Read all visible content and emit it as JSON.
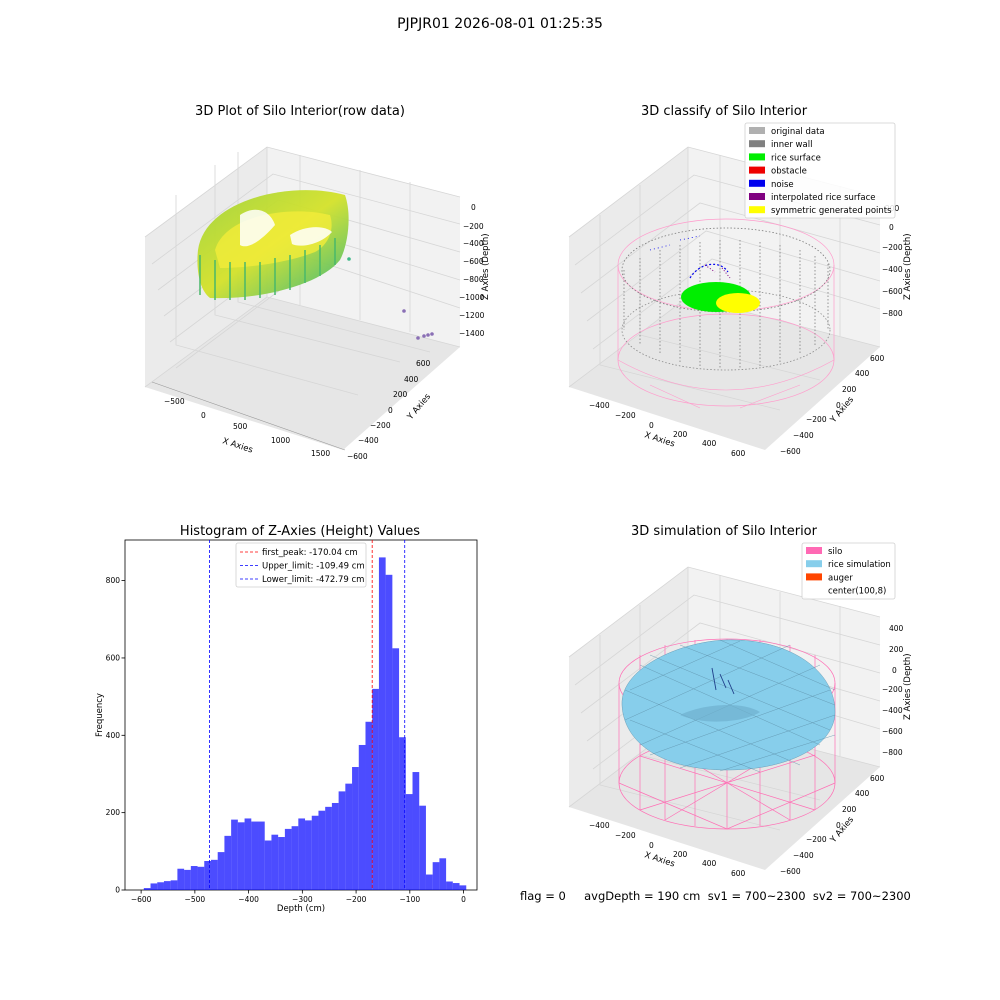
{
  "suptitle": "PJPJR01 2026-08-01 01:25:35",
  "status_text": "flag = 0     avgDepth = 190 cm  sv1 = 700~2300  sv2 = 700~2300",
  "panels": {
    "raw": {
      "title": "3D Plot of Silo Interior(row data)",
      "xlabel": "X Axies",
      "ylabel": "Y Axies",
      "zlabel": "Z Axies (Depth)",
      "xticks": [
        "−500",
        "0",
        "500",
        "1000",
        "1500"
      ],
      "yticks": [
        "600",
        "400",
        "200",
        "0",
        "−200",
        "−400",
        "−600"
      ],
      "zticks": [
        "0",
        "−200",
        "−400",
        "−600",
        "−800",
        "−1000",
        "−1200",
        "−1400"
      ]
    },
    "classify": {
      "title": "3D classify of Silo Interior",
      "xlabel": "X Axies",
      "ylabel": "Y Axies",
      "zlabel": "Z Axies (Depth)",
      "xticks": [
        "−400",
        "−200",
        "0",
        "200",
        "400",
        "600"
      ],
      "yticks": [
        "600",
        "400",
        "200",
        "0",
        "−200",
        "−400",
        "−600"
      ],
      "zticks": [
        "200",
        "0",
        "−200",
        "−400",
        "−600",
        "−800"
      ],
      "legend": [
        {
          "label": "original data",
          "color": "#b0b0b0"
        },
        {
          "label": "inner wall",
          "color": "#808080"
        },
        {
          "label": "rice surface",
          "color": "#00ee00"
        },
        {
          "label": "obstacle",
          "color": "#ee0000"
        },
        {
          "label": "noise",
          "color": "#0000ee"
        },
        {
          "label": "interpolated rice surface",
          "color": "#800080"
        },
        {
          "label": "symmetric generated points",
          "color": "#ffff00"
        }
      ]
    },
    "simulation": {
      "title": "3D simulation of Silo Interior",
      "xlabel": "X Axies",
      "ylabel": "Y Axies",
      "zlabel": "Z Axies (Depth)",
      "xticks": [
        "−400",
        "−200",
        "0",
        "200",
        "400",
        "600"
      ],
      "yticks": [
        "600",
        "400",
        "200",
        "0",
        "−200",
        "−400",
        "−600"
      ],
      "zticks": [
        "400",
        "200",
        "0",
        "−200",
        "−400",
        "−600",
        "−800"
      ],
      "legend": [
        {
          "label": "silo",
          "color": "#ff69b4"
        },
        {
          "label": "rice simulation",
          "color": "#87ceeb"
        },
        {
          "label": "auger",
          "color": "#ff4500"
        },
        {
          "label": "center(100,8)",
          "color": ""
        }
      ]
    }
  },
  "chart_data": {
    "type": "bar",
    "title": "Histogram of Z-Axies (Height) Values",
    "xlabel": "Depth (cm)",
    "ylabel": "Frequency",
    "xlim": [
      -630,
      25
    ],
    "ylim": [
      0,
      905
    ],
    "xticks": [
      -600,
      -500,
      -400,
      -300,
      -200,
      -100,
      0
    ],
    "yticks": [
      0,
      200,
      400,
      600,
      800
    ],
    "bar_color": "#0000ff",
    "bin_width": 12.5,
    "bin_starts": [
      -595,
      -582.5,
      -570,
      -557.5,
      -545,
      -532.5,
      -520,
      -507.5,
      -495,
      -482.5,
      -470,
      -457.5,
      -445,
      -432.5,
      -420,
      -407.5,
      -395,
      -382.5,
      -370,
      -357.5,
      -345,
      -332.5,
      -320,
      -307.5,
      -295,
      -282.5,
      -270,
      -257.5,
      -245,
      -232.5,
      -220,
      -207.5,
      -195,
      -182.5,
      -170,
      -157.5,
      -145,
      -132.5,
      -120,
      -107.5,
      -95,
      -82.5,
      -70,
      -57.5,
      -45,
      -32.5,
      -20,
      -7.5
    ],
    "values": [
      5,
      17,
      20,
      23,
      25,
      55,
      52,
      62,
      60,
      75,
      78,
      98,
      140,
      182,
      175,
      185,
      177,
      177,
      128,
      143,
      137,
      158,
      165,
      185,
      180,
      192,
      205,
      215,
      225,
      255,
      275,
      318,
      375,
      435,
      520,
      860,
      815,
      625,
      395,
      248,
      305,
      218,
      40,
      72,
      82,
      22,
      18,
      12
    ],
    "lines": [
      {
        "label": "first_peak: -170.04 cm",
        "x": -170.04,
        "color": "#ff0000"
      },
      {
        "label": "Upper_limit: -109.49 cm",
        "x": -109.49,
        "color": "#0000ff"
      },
      {
        "label": "Lower_limit: -472.79 cm",
        "x": -472.79,
        "color": "#0000ff"
      }
    ]
  }
}
